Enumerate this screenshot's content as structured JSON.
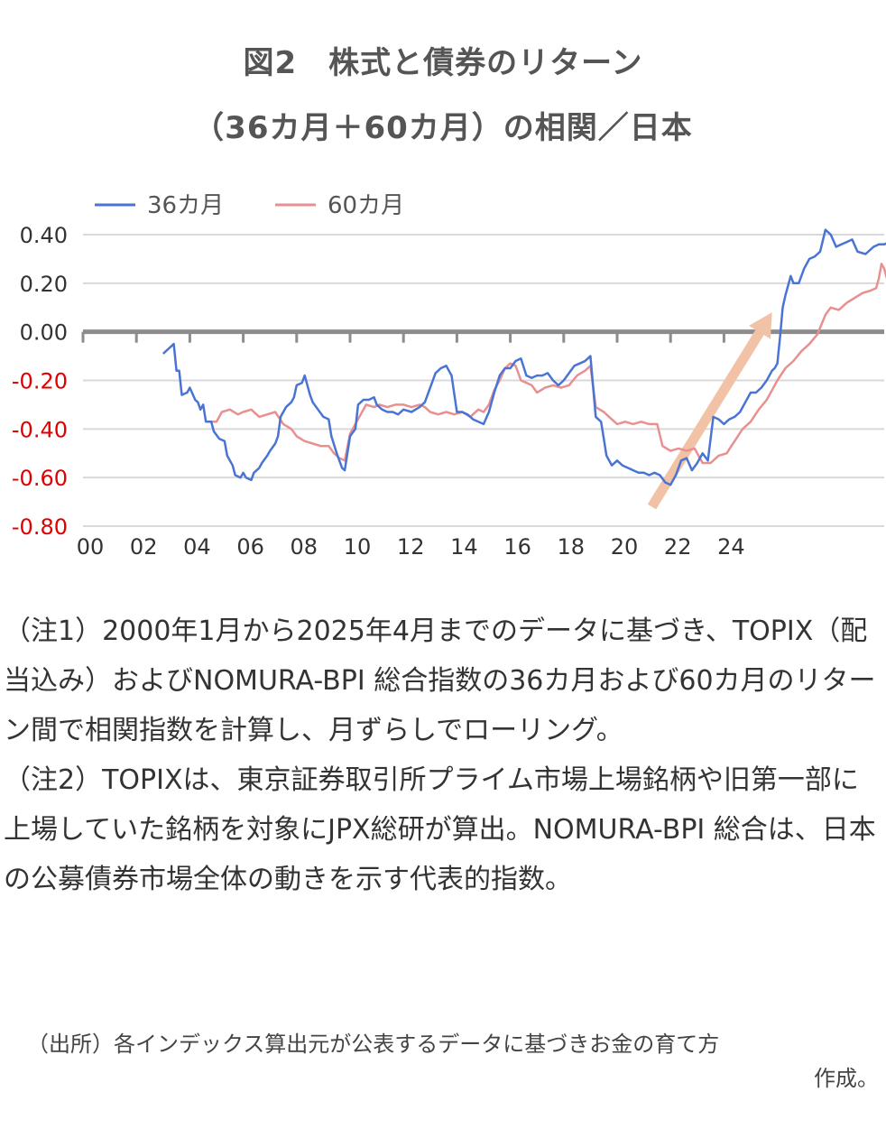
{
  "title_line1": "図2　株式と債券のリターン",
  "title_line2": "（36カ月＋60カ月）の相関／日本",
  "chart_data": {
    "type": "line",
    "series": [
      {
        "name": "36カ月",
        "color": "#4a74d4",
        "points": [
          [
            2003.0,
            -0.09
          ],
          [
            2003.2,
            -0.07
          ],
          [
            2003.4,
            -0.05
          ],
          [
            2003.5,
            -0.16
          ],
          [
            2003.6,
            -0.16
          ],
          [
            2003.7,
            -0.26
          ],
          [
            2003.9,
            -0.25
          ],
          [
            2004.0,
            -0.23
          ],
          [
            2004.2,
            -0.28
          ],
          [
            2004.3,
            -0.29
          ],
          [
            2004.4,
            -0.32
          ],
          [
            2004.5,
            -0.3
          ],
          [
            2004.6,
            -0.37
          ],
          [
            2004.8,
            -0.37
          ],
          [
            2004.9,
            -0.41
          ],
          [
            2005.1,
            -0.44
          ],
          [
            2005.3,
            -0.45
          ],
          [
            2005.4,
            -0.51
          ],
          [
            2005.6,
            -0.55
          ],
          [
            2005.7,
            -0.59
          ],
          [
            2005.9,
            -0.6
          ],
          [
            2006.0,
            -0.58
          ],
          [
            2006.1,
            -0.6
          ],
          [
            2006.3,
            -0.61
          ],
          [
            2006.4,
            -0.58
          ],
          [
            2006.6,
            -0.56
          ],
          [
            2006.7,
            -0.54
          ],
          [
            2006.9,
            -0.51
          ],
          [
            2007.0,
            -0.49
          ],
          [
            2007.2,
            -0.46
          ],
          [
            2007.3,
            -0.43
          ],
          [
            2007.4,
            -0.35
          ],
          [
            2007.6,
            -0.31
          ],
          [
            2007.8,
            -0.29
          ],
          [
            2007.9,
            -0.27
          ],
          [
            2008.0,
            -0.22
          ],
          [
            2008.2,
            -0.21
          ],
          [
            2008.3,
            -0.18
          ],
          [
            2008.5,
            -0.26
          ],
          [
            2008.6,
            -0.29
          ],
          [
            2008.8,
            -0.32
          ],
          [
            2009.0,
            -0.35
          ],
          [
            2009.2,
            -0.36
          ],
          [
            2009.3,
            -0.43
          ],
          [
            2009.5,
            -0.5
          ],
          [
            2009.7,
            -0.56
          ],
          [
            2009.8,
            -0.57
          ],
          [
            2010.0,
            -0.43
          ],
          [
            2010.2,
            -0.4
          ],
          [
            2010.3,
            -0.3
          ],
          [
            2010.5,
            -0.28
          ],
          [
            2010.7,
            -0.28
          ],
          [
            2010.9,
            -0.27
          ],
          [
            2011.0,
            -0.3
          ],
          [
            2011.2,
            -0.32
          ],
          [
            2011.4,
            -0.33
          ],
          [
            2011.6,
            -0.33
          ],
          [
            2011.8,
            -0.34
          ],
          [
            2012.0,
            -0.32
          ],
          [
            2012.3,
            -0.33
          ],
          [
            2012.6,
            -0.31
          ],
          [
            2012.8,
            -0.29
          ],
          [
            2013.0,
            -0.23
          ],
          [
            2013.2,
            -0.17
          ],
          [
            2013.4,
            -0.15
          ],
          [
            2013.6,
            -0.14
          ],
          [
            2013.8,
            -0.18
          ],
          [
            2014.0,
            -0.33
          ],
          [
            2014.2,
            -0.33
          ],
          [
            2014.4,
            -0.34
          ],
          [
            2014.6,
            -0.36
          ],
          [
            2014.8,
            -0.37
          ],
          [
            2015.0,
            -0.38
          ],
          [
            2015.2,
            -0.33
          ],
          [
            2015.4,
            -0.25
          ],
          [
            2015.6,
            -0.18
          ],
          [
            2015.8,
            -0.15
          ],
          [
            2016.0,
            -0.15
          ],
          [
            2016.2,
            -0.12
          ],
          [
            2016.4,
            -0.11
          ],
          [
            2016.6,
            -0.18
          ],
          [
            2016.8,
            -0.19
          ],
          [
            2017.0,
            -0.18
          ],
          [
            2017.2,
            -0.18
          ],
          [
            2017.4,
            -0.17
          ],
          [
            2017.6,
            -0.2
          ],
          [
            2017.8,
            -0.22
          ],
          [
            2018.0,
            -0.2
          ],
          [
            2018.2,
            -0.17
          ],
          [
            2018.4,
            -0.14
          ],
          [
            2018.6,
            -0.13
          ],
          [
            2018.8,
            -0.12
          ],
          [
            2019.0,
            -0.1
          ],
          [
            2019.2,
            -0.35
          ],
          [
            2019.4,
            -0.37
          ],
          [
            2019.6,
            -0.51
          ],
          [
            2019.8,
            -0.55
          ],
          [
            2020.0,
            -0.53
          ],
          [
            2020.2,
            -0.55
          ],
          [
            2020.4,
            -0.56
          ],
          [
            2020.6,
            -0.57
          ],
          [
            2020.8,
            -0.58
          ],
          [
            2021.0,
            -0.58
          ],
          [
            2021.2,
            -0.59
          ],
          [
            2021.4,
            -0.58
          ],
          [
            2021.6,
            -0.59
          ],
          [
            2021.8,
            -0.62
          ],
          [
            2022.0,
            -0.63
          ],
          [
            2022.2,
            -0.59
          ],
          [
            2022.4,
            -0.53
          ],
          [
            2022.6,
            -0.52
          ],
          [
            2022.8,
            -0.57
          ],
          [
            2023.0,
            -0.54
          ],
          [
            2023.2,
            -0.5
          ],
          [
            2023.4,
            -0.53
          ],
          [
            2023.6,
            -0.35
          ],
          [
            2023.8,
            -0.36
          ],
          [
            2024.0,
            -0.38
          ],
          [
            2024.2,
            -0.36
          ],
          [
            2024.4,
            -0.35
          ],
          [
            2024.6,
            -0.33
          ],
          [
            2024.8,
            -0.29
          ],
          [
            2025.0,
            -0.25
          ],
          [
            2025.2,
            -0.25
          ],
          [
            2025.4,
            -0.23
          ],
          [
            2025.6,
            -0.2
          ],
          [
            2025.8,
            -0.16
          ],
          [
            2025.9,
            -0.15
          ],
          [
            2026.0,
            -0.13
          ],
          [
            2026.1,
            -0.02
          ],
          [
            2026.2,
            0.1
          ],
          [
            2026.3,
            0.15
          ],
          [
            2026.5,
            0.23
          ],
          [
            2026.6,
            0.2
          ],
          [
            2026.8,
            0.2
          ],
          [
            2027.0,
            0.26
          ],
          [
            2027.2,
            0.3
          ],
          [
            2027.4,
            0.31
          ],
          [
            2027.6,
            0.33
          ],
          [
            2027.8,
            0.42
          ],
          [
            2028.0,
            0.4
          ],
          [
            2028.2,
            0.35
          ],
          [
            2028.4,
            0.36
          ],
          [
            2028.6,
            0.37
          ],
          [
            2028.8,
            0.38
          ],
          [
            2029.0,
            0.33
          ],
          [
            2029.3,
            0.32
          ],
          [
            2029.6,
            0.35
          ],
          [
            2029.8,
            0.36
          ],
          [
            2030.0,
            0.36
          ],
          [
            2030.2,
            0.37
          ]
        ]
      },
      {
        "name": "60カ月",
        "color": "#e89090",
        "points": [
          [
            2004.8,
            -0.37
          ],
          [
            2005.0,
            -0.37
          ],
          [
            2005.2,
            -0.33
          ],
          [
            2005.5,
            -0.32
          ],
          [
            2005.8,
            -0.34
          ],
          [
            2006.0,
            -0.33
          ],
          [
            2006.3,
            -0.32
          ],
          [
            2006.6,
            -0.35
          ],
          [
            2006.9,
            -0.34
          ],
          [
            2007.2,
            -0.33
          ],
          [
            2007.5,
            -0.38
          ],
          [
            2007.8,
            -0.4
          ],
          [
            2008.0,
            -0.43
          ],
          [
            2008.3,
            -0.45
          ],
          [
            2008.6,
            -0.46
          ],
          [
            2008.9,
            -0.47
          ],
          [
            2009.2,
            -0.47
          ],
          [
            2009.4,
            -0.5
          ],
          [
            2009.6,
            -0.52
          ],
          [
            2009.8,
            -0.53
          ],
          [
            2010.0,
            -0.42
          ],
          [
            2010.2,
            -0.38
          ],
          [
            2010.4,
            -0.34
          ],
          [
            2010.6,
            -0.3
          ],
          [
            2010.9,
            -0.31
          ],
          [
            2011.1,
            -0.3
          ],
          [
            2011.4,
            -0.31
          ],
          [
            2011.7,
            -0.3
          ],
          [
            2012.0,
            -0.3
          ],
          [
            2012.3,
            -0.31
          ],
          [
            2012.6,
            -0.3
          ],
          [
            2012.8,
            -0.31
          ],
          [
            2013.0,
            -0.33
          ],
          [
            2013.3,
            -0.34
          ],
          [
            2013.6,
            -0.33
          ],
          [
            2013.9,
            -0.34
          ],
          [
            2014.2,
            -0.33
          ],
          [
            2014.5,
            -0.35
          ],
          [
            2014.8,
            -0.32
          ],
          [
            2015.0,
            -0.33
          ],
          [
            2015.2,
            -0.3
          ],
          [
            2015.4,
            -0.24
          ],
          [
            2015.6,
            -0.2
          ],
          [
            2015.8,
            -0.15
          ],
          [
            2016.0,
            -0.13
          ],
          [
            2016.2,
            -0.14
          ],
          [
            2016.4,
            -0.2
          ],
          [
            2016.6,
            -0.21
          ],
          [
            2016.8,
            -0.22
          ],
          [
            2017.0,
            -0.25
          ],
          [
            2017.3,
            -0.23
          ],
          [
            2017.6,
            -0.22
          ],
          [
            2017.9,
            -0.23
          ],
          [
            2018.2,
            -0.22
          ],
          [
            2018.5,
            -0.18
          ],
          [
            2018.8,
            -0.16
          ],
          [
            2019.0,
            -0.14
          ],
          [
            2019.2,
            -0.31
          ],
          [
            2019.5,
            -0.33
          ],
          [
            2019.7,
            -0.35
          ],
          [
            2020.0,
            -0.38
          ],
          [
            2020.3,
            -0.37
          ],
          [
            2020.6,
            -0.38
          ],
          [
            2020.9,
            -0.37
          ],
          [
            2021.2,
            -0.38
          ],
          [
            2021.5,
            -0.38
          ],
          [
            2021.7,
            -0.47
          ],
          [
            2022.0,
            -0.49
          ],
          [
            2022.3,
            -0.48
          ],
          [
            2022.6,
            -0.49
          ],
          [
            2022.9,
            -0.48
          ],
          [
            2023.2,
            -0.54
          ],
          [
            2023.5,
            -0.54
          ],
          [
            2023.8,
            -0.51
          ],
          [
            2024.1,
            -0.5
          ],
          [
            2024.4,
            -0.45
          ],
          [
            2024.7,
            -0.4
          ],
          [
            2025.0,
            -0.37
          ],
          [
            2025.3,
            -0.32
          ],
          [
            2025.6,
            -0.28
          ],
          [
            2025.8,
            -0.24
          ],
          [
            2026.0,
            -0.2
          ],
          [
            2026.3,
            -0.15
          ],
          [
            2026.6,
            -0.12
          ],
          [
            2026.9,
            -0.08
          ],
          [
            2027.2,
            -0.05
          ],
          [
            2027.5,
            -0.01
          ],
          [
            2027.8,
            0.07
          ],
          [
            2028.0,
            0.1
          ],
          [
            2028.3,
            0.09
          ],
          [
            2028.6,
            0.12
          ],
          [
            2028.9,
            0.14
          ],
          [
            2029.2,
            0.16
          ],
          [
            2029.5,
            0.17
          ],
          [
            2029.7,
            0.18
          ],
          [
            2029.8,
            0.22
          ],
          [
            2029.9,
            0.28
          ],
          [
            2030.0,
            0.26
          ],
          [
            2030.1,
            0.22
          ]
        ]
      }
    ],
    "xlim": [
      2000,
      2030
    ],
    "ylim": [
      -0.8,
      0.4
    ],
    "x_ticks": [
      "00",
      "02",
      "04",
      "06",
      "08",
      "10",
      "12",
      "14",
      "16",
      "18",
      "20",
      "22",
      "24"
    ],
    "y_ticks": [
      "0.40",
      "0.20",
      "0.00",
      "-0.20",
      "-0.40",
      "-0.60",
      "-0.80"
    ],
    "y_tick_values": [
      0.4,
      0.2,
      0.0,
      -0.2,
      -0.4,
      -0.6,
      -0.8
    ],
    "negative_tick_color": "#e00000",
    "positive_tick_color": "#333333",
    "grid": true,
    "legend_position": "top-left",
    "trend_arrow": {
      "color": "#f1c2a6",
      "from": [
        2021.3,
        -0.72
      ],
      "to": [
        2025.8,
        0.08
      ]
    }
  },
  "notes": [
    "（注1）2000年1月から2025年4月までのデータに基づき、TOPIX（配当込み）およびNOMURA-BPI 総合指数の36カ月および60カ月のリターン間で相関指数を計算し、月ずらしでローリング。",
    "（注2）TOPIXは、東京証券取引所プライム市場上場銘柄や旧第一部に上場していた銘柄を対象にJPX総研が算出。NOMURA-BPI 総合は、日本の公募債券市場全体の動きを示す代表的指数。"
  ],
  "source_line1": "（出所）各インデックス算出元が公表するデータに基づきお金の育て方",
  "source_line2": "作成。"
}
